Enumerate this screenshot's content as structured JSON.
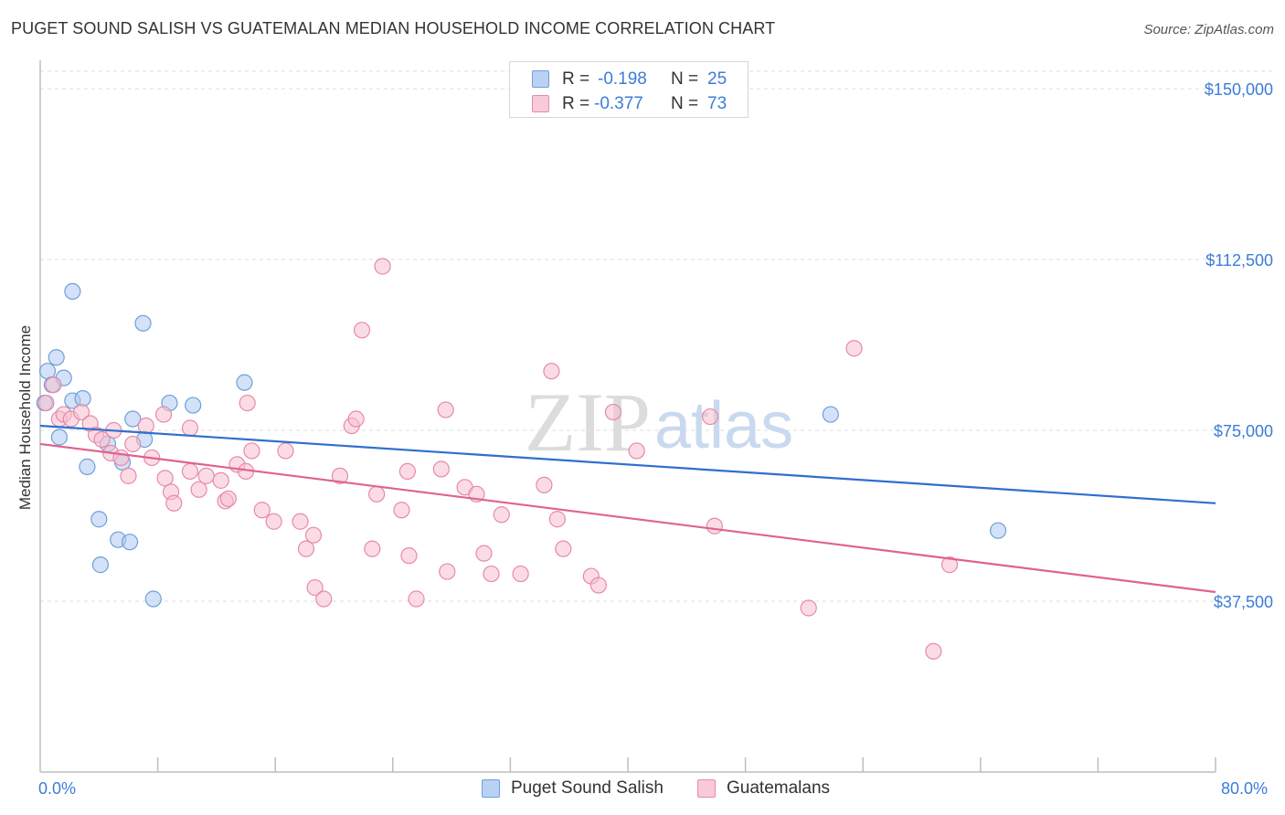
{
  "header": {
    "title": "PUGET SOUND SALISH VS GUATEMALAN MEDIAN HOUSEHOLD INCOME CORRELATION CHART",
    "source": "Source: ZipAtlas.com"
  },
  "legend": {
    "rows": [
      {
        "r_label": "R =",
        "r_value": "-0.198",
        "n_label": "N =",
        "n_value": "25"
      },
      {
        "r_label": "R =",
        "r_value": "-0.377",
        "n_label": "N =",
        "n_value": "73"
      }
    ]
  },
  "watermark": {
    "zip": "ZIP",
    "atlas": "atlas"
  },
  "chart_data": {
    "type": "scatter",
    "title": "PUGET SOUND SALISH VS GUATEMALAN MEDIAN HOUSEHOLD INCOME CORRELATION CHART",
    "xlabel": "",
    "ylabel": "Median Household Income",
    "xlim": [
      0,
      80
    ],
    "ylim": [
      0,
      157000
    ],
    "x_tick_labels": [
      "0.0%",
      "80.0%"
    ],
    "y_ticks": [
      37500,
      75000,
      112500,
      150000
    ],
    "y_tick_labels": [
      "$37,500",
      "$75,000",
      "$112,500",
      "$150,000"
    ],
    "grid": true,
    "legend_position": "top-center",
    "colors": {
      "blue_fill": "#aecbf2",
      "blue_stroke": "#6f9fd8",
      "blue_line": "#2f6fcf",
      "pink_fill": "#f7bfd0",
      "pink_stroke": "#e68aa8",
      "pink_line": "#e0628c",
      "axis_text": "#3b7dd8"
    },
    "series": [
      {
        "name": "Puget Sound Salish",
        "color": "blue",
        "points": [
          [
            0.3,
            81000
          ],
          [
            0.5,
            88000
          ],
          [
            0.8,
            85000
          ],
          [
            1.1,
            91000
          ],
          [
            1.6,
            86500
          ],
          [
            1.3,
            73500
          ],
          [
            2.2,
            81500
          ],
          [
            2.9,
            82000
          ],
          [
            2.2,
            105500
          ],
          [
            3.2,
            67000
          ],
          [
            4.6,
            72000
          ],
          [
            5.6,
            68000
          ],
          [
            6.3,
            77500
          ],
          [
            7.1,
            73000
          ],
          [
            7.0,
            98500
          ],
          [
            8.8,
            81000
          ],
          [
            10.4,
            80500
          ],
          [
            13.9,
            85500
          ],
          [
            4.0,
            55500
          ],
          [
            5.3,
            51000
          ],
          [
            6.1,
            50500
          ],
          [
            4.1,
            45500
          ],
          [
            7.7,
            38000
          ],
          [
            53.8,
            78500
          ],
          [
            65.2,
            53000
          ]
        ]
      },
      {
        "name": "Guatemalans",
        "color": "pink",
        "points": [
          [
            0.4,
            81000
          ],
          [
            0.9,
            85000
          ],
          [
            1.3,
            77500
          ],
          [
            1.6,
            78500
          ],
          [
            2.1,
            77500
          ],
          [
            2.8,
            79000
          ],
          [
            3.4,
            76500
          ],
          [
            3.8,
            74000
          ],
          [
            4.2,
            73000
          ],
          [
            4.8,
            70000
          ],
          [
            5.5,
            69000
          ],
          [
            6.3,
            72000
          ],
          [
            7.6,
            69000
          ],
          [
            7.2,
            76000
          ],
          [
            8.4,
            78500
          ],
          [
            8.5,
            64500
          ],
          [
            8.9,
            61500
          ],
          [
            10.2,
            75500
          ],
          [
            10.2,
            66000
          ],
          [
            10.8,
            62000
          ],
          [
            11.3,
            65000
          ],
          [
            12.3,
            64000
          ],
          [
            12.6,
            59500
          ],
          [
            12.8,
            60000
          ],
          [
            13.4,
            67500
          ],
          [
            14.1,
            81000
          ],
          [
            14.4,
            70500
          ],
          [
            15.1,
            57500
          ],
          [
            16.7,
            70500
          ],
          [
            15.9,
            55000
          ],
          [
            17.7,
            55000
          ],
          [
            18.1,
            49000
          ],
          [
            18.6,
            52000
          ],
          [
            18.7,
            40500
          ],
          [
            19.3,
            38000
          ],
          [
            20.4,
            65000
          ],
          [
            21.2,
            76000
          ],
          [
            21.5,
            77500
          ],
          [
            21.9,
            97000
          ],
          [
            22.6,
            49000
          ],
          [
            22.9,
            61000
          ],
          [
            23.3,
            111000
          ],
          [
            24.6,
            57500
          ],
          [
            25.0,
            66000
          ],
          [
            25.1,
            47500
          ],
          [
            25.6,
            38000
          ],
          [
            27.3,
            66500
          ],
          [
            27.6,
            79500
          ],
          [
            27.7,
            44000
          ],
          [
            28.9,
            62500
          ],
          [
            29.7,
            61000
          ],
          [
            30.2,
            48000
          ],
          [
            30.7,
            43500
          ],
          [
            31.4,
            56500
          ],
          [
            32.7,
            43500
          ],
          [
            34.3,
            63000
          ],
          [
            34.8,
            88000
          ],
          [
            35.2,
            55500
          ],
          [
            35.6,
            49000
          ],
          [
            37.5,
            43000
          ],
          [
            38.0,
            41000
          ],
          [
            39.0,
            79000
          ],
          [
            40.6,
            70500
          ],
          [
            45.6,
            78000
          ],
          [
            45.9,
            54000
          ],
          [
            52.3,
            36000
          ],
          [
            55.4,
            93000
          ],
          [
            60.8,
            26500
          ],
          [
            61.9,
            45500
          ],
          [
            5.0,
            75000
          ],
          [
            6.0,
            65000
          ],
          [
            9.1,
            59000
          ],
          [
            14.0,
            66000
          ]
        ]
      }
    ],
    "trendlines": [
      {
        "series": "Puget Sound Salish",
        "x": [
          0,
          80
        ],
        "y": [
          76000,
          59000
        ]
      },
      {
        "series": "Guatemalans",
        "x": [
          0,
          80
        ],
        "y": [
          72000,
          39500
        ]
      }
    ]
  }
}
